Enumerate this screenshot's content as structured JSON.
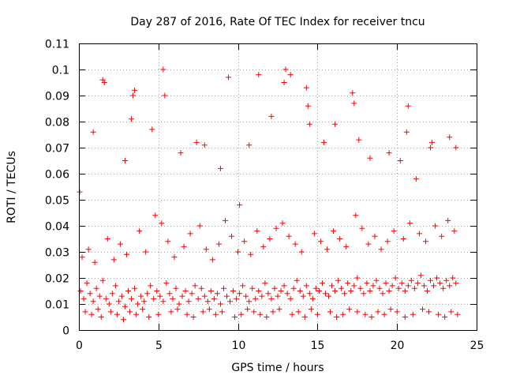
{
  "chart_data": {
    "type": "scatter",
    "title": "Day 287 of 2016, Rate Of TEC Index for receiver tncu",
    "xlabel": "GPS time / hours",
    "ylabel": "ROTI / TECUs",
    "xlim": [
      0,
      25
    ],
    "ylim": [
      0,
      0.11
    ],
    "xticks": [
      0,
      5,
      10,
      15,
      20,
      25
    ],
    "xtick_labels": [
      "0",
      "5",
      "10",
      "15",
      "20",
      "25"
    ],
    "yticks": [
      0,
      0.01,
      0.02,
      0.03,
      0.04,
      0.05,
      0.06,
      0.07,
      0.08,
      0.09,
      0.1,
      0.11
    ],
    "ytick_labels": [
      "0",
      "0.01",
      "0.02",
      "0.03",
      "0.04",
      "0.05",
      "0.06",
      "0.07",
      "0.08",
      "0.09",
      "0.1",
      "0.11"
    ],
    "grid": true,
    "marker": "plus",
    "color": "#ff0000",
    "series": [
      {
        "name": "ROTI",
        "x": [
          0.1,
          0.3,
          0.5,
          0.7,
          0.9,
          1.1,
          1.3,
          1.5,
          1.7,
          1.9,
          2.1,
          2.3,
          2.5,
          2.7,
          2.9,
          3.1,
          3.3,
          3.5,
          3.7,
          3.9,
          4.1,
          4.3,
          4.5,
          4.7,
          4.9,
          5.1,
          5.3,
          5.5,
          5.7,
          5.9,
          6.1,
          6.3,
          6.5,
          6.7,
          6.9,
          7.1,
          7.3,
          7.5,
          7.7,
          7.9,
          8.1,
          8.3,
          8.5,
          8.7,
          8.9,
          9.1,
          9.3,
          9.5,
          9.7,
          9.9,
          10.1,
          10.3,
          10.5,
          10.7,
          10.9,
          11.1,
          11.3,
          11.5,
          11.7,
          11.9,
          12.1,
          12.3,
          12.5,
          12.7,
          12.9,
          13.1,
          13.3,
          13.5,
          13.7,
          13.9,
          14.1,
          14.3,
          14.5,
          14.7,
          14.9,
          15.1,
          15.3,
          15.5,
          15.7,
          15.9,
          16.1,
          16.3,
          16.5,
          16.7,
          16.9,
          17.1,
          17.3,
          17.5,
          17.7,
          17.9,
          18.1,
          18.3,
          18.5,
          18.7,
          18.9,
          19.1,
          19.3,
          19.5,
          19.7,
          19.9,
          20.1,
          20.3,
          20.5,
          20.7,
          20.9,
          21.1,
          21.3,
          21.5,
          21.7,
          21.9,
          22.1,
          22.3,
          22.5,
          22.7,
          22.9,
          23.1,
          23.3,
          23.5,
          23.7,
          0.05,
          0.9,
          1.5,
          1.6,
          2.9,
          3.3,
          3.4,
          3.5,
          4.6,
          5.3,
          5.4,
          6.4,
          7.4,
          7.9,
          8.9,
          9.4,
          10.1,
          10.7,
          11.3,
          12.1,
          12.9,
          13.0,
          13.3,
          14.3,
          14.4,
          14.5,
          15.4,
          16.1,
          17.2,
          17.3,
          17.6,
          18.3,
          19.5,
          20.2,
          20.6,
          20.7,
          21.2,
          22.1,
          22.2,
          23.3,
          23.7,
          0.2,
          0.6,
          1.0,
          1.8,
          2.2,
          2.6,
          3.0,
          3.8,
          4.2,
          4.8,
          5.2,
          5.6,
          6.0,
          6.6,
          7.0,
          7.6,
          8.0,
          8.4,
          8.8,
          9.2,
          9.6,
          10.0,
          10.4,
          10.8,
          11.2,
          11.6,
          12.0,
          12.4,
          12.8,
          13.2,
          13.6,
          14.0,
          14.8,
          15.2,
          15.6,
          16.0,
          16.4,
          16.8,
          17.4,
          17.8,
          18.2,
          18.6,
          19.0,
          19.4,
          19.8,
          20.4,
          20.8,
          21.4,
          21.8,
          22.4,
          22.8,
          23.2,
          23.6,
          0.4,
          0.8,
          1.2,
          1.4,
          2.0,
          2.4,
          2.8,
          3.2,
          3.6,
          4.0,
          4.4,
          5.0,
          5.8,
          6.2,
          6.8,
          7.2,
          7.8,
          8.2,
          8.6,
          9.0,
          9.8,
          10.2,
          10.6,
          11.0,
          11.4,
          11.8,
          12.2,
          12.6,
          13.4,
          13.8,
          14.2,
          14.6,
          15.0,
          15.8,
          16.2,
          16.6,
          17.0,
          17.5,
          18.0,
          18.4,
          18.8,
          19.2,
          19.6,
          20.0,
          20.5,
          21.0,
          21.6,
          22.0,
          22.6,
          23.0,
          23.4,
          23.8
        ],
        "y": [
          0.015,
          0.012,
          0.018,
          0.014,
          0.011,
          0.016,
          0.013,
          0.019,
          0.012,
          0.01,
          0.014,
          0.017,
          0.011,
          0.013,
          0.009,
          0.015,
          0.012,
          0.016,
          0.01,
          0.013,
          0.011,
          0.014,
          0.017,
          0.012,
          0.015,
          0.013,
          0.011,
          0.018,
          0.014,
          0.012,
          0.016,
          0.01,
          0.013,
          0.015,
          0.011,
          0.014,
          0.017,
          0.012,
          0.016,
          0.013,
          0.011,
          0.015,
          0.012,
          0.014,
          0.01,
          0.016,
          0.013,
          0.011,
          0.015,
          0.012,
          0.014,
          0.017,
          0.013,
          0.011,
          0.016,
          0.012,
          0.015,
          0.013,
          0.018,
          0.014,
          0.012,
          0.016,
          0.013,
          0.015,
          0.017,
          0.014,
          0.012,
          0.016,
          0.019,
          0.015,
          0.013,
          0.017,
          0.014,
          0.012,
          0.016,
          0.015,
          0.018,
          0.014,
          0.013,
          0.017,
          0.015,
          0.019,
          0.016,
          0.014,
          0.018,
          0.015,
          0.017,
          0.02,
          0.016,
          0.014,
          0.018,
          0.015,
          0.017,
          0.019,
          0.016,
          0.014,
          0.018,
          0.015,
          0.017,
          0.02,
          0.016,
          0.018,
          0.015,
          0.017,
          0.019,
          0.016,
          0.018,
          0.021,
          0.017,
          0.015,
          0.019,
          0.017,
          0.02,
          0.018,
          0.016,
          0.019,
          0.017,
          0.02,
          0.018,
          0.053,
          0.076,
          0.096,
          0.095,
          0.065,
          0.081,
          0.09,
          0.092,
          0.077,
          0.1,
          0.09,
          0.068,
          0.072,
          0.071,
          0.062,
          0.097,
          0.048,
          0.071,
          0.098,
          0.082,
          0.095,
          0.1,
          0.098,
          0.093,
          0.086,
          0.079,
          0.072,
          0.079,
          0.091,
          0.087,
          0.073,
          0.066,
          0.068,
          0.065,
          0.076,
          0.086,
          0.058,
          0.07,
          0.072,
          0.074,
          0.07,
          0.028,
          0.031,
          0.026,
          0.035,
          0.027,
          0.033,
          0.029,
          0.038,
          0.03,
          0.044,
          0.041,
          0.034,
          0.028,
          0.032,
          0.037,
          0.04,
          0.031,
          0.027,
          0.033,
          0.042,
          0.036,
          0.03,
          0.034,
          0.029,
          0.038,
          0.032,
          0.035,
          0.039,
          0.041,
          0.036,
          0.033,
          0.03,
          0.037,
          0.034,
          0.031,
          0.038,
          0.035,
          0.032,
          0.044,
          0.039,
          0.033,
          0.036,
          0.031,
          0.034,
          0.038,
          0.035,
          0.041,
          0.037,
          0.034,
          0.04,
          0.036,
          0.042,
          0.038,
          0.007,
          0.006,
          0.008,
          0.005,
          0.007,
          0.006,
          0.004,
          0.007,
          0.006,
          0.008,
          0.005,
          0.006,
          0.007,
          0.008,
          0.006,
          0.005,
          0.007,
          0.008,
          0.006,
          0.007,
          0.005,
          0.006,
          0.008,
          0.007,
          0.006,
          0.005,
          0.007,
          0.008,
          0.006,
          0.007,
          0.005,
          0.008,
          0.006,
          0.007,
          0.005,
          0.006,
          0.008,
          0.007,
          0.006,
          0.005,
          0.007,
          0.006,
          0.008,
          0.007,
          0.005,
          0.006,
          0.008,
          0.007,
          0.006,
          0.005,
          0.007,
          0.006
        ]
      }
    ]
  }
}
